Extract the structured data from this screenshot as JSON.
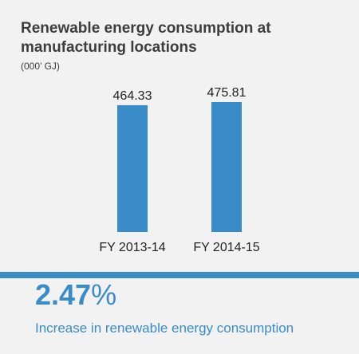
{
  "chart_data": {
    "type": "bar",
    "title": "Renewable energy consumption at manufacturing locations",
    "unit_label": "(000’ GJ)",
    "categories": [
      "FY 2013-14",
      "FY 2014-15"
    ],
    "values": [
      464.33,
      475.81
    ],
    "value_labels": [
      "464.33",
      "475.81"
    ],
    "ylim": [
      0,
      475.81
    ],
    "bar_color": "#3a8cc8"
  },
  "summary": {
    "value": "2.47",
    "unit": "%",
    "caption": "Increase in renewable energy consumption"
  },
  "colors": {
    "accent": "#3a8cc8",
    "text": "#3d3d3d",
    "background": "#f2f2f2"
  }
}
